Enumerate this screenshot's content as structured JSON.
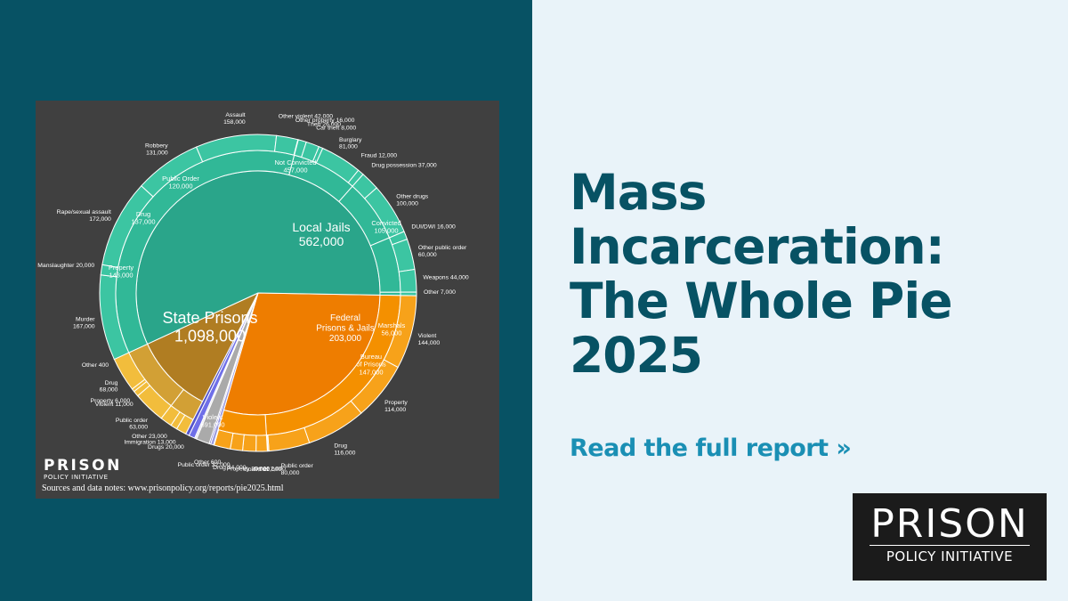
{
  "headline": {
    "lines": [
      "Mass",
      "Incarceration:",
      "The Whole Pie",
      "2025"
    ]
  },
  "cta": {
    "label": "Read the full report »"
  },
  "brand": {
    "word": "PRISON",
    "sub": "POLICY INITIATIVE"
  },
  "colors": {
    "left_panel": "#075264",
    "right_panel": "#e9f3f9",
    "headline": "#075264",
    "cta": "#1a8fb4",
    "chart_bg": "#404040",
    "state_prisons": "#2aa58a",
    "local_jails": "#ee7d00",
    "federal": "#b07d22",
    "small_groups": [
      "#9b9be0",
      "#7a7ad0",
      "#aaaaaa",
      "#e6e6ee",
      "#6f6fe8",
      "#5555cc"
    ]
  },
  "chart_data": {
    "type": "pie",
    "subtype": "sunburst",
    "card_logo": {
      "word": "PRISON",
      "sub": "POLICY INITIATIVE"
    },
    "sources": "Sources and data notes: www.prisonpolicy.org/reports/pie2025.html",
    "groups": [
      {
        "key": "local",
        "label": "Local Jails",
        "value_text": "562,000",
        "value": 562000,
        "subgroups": [
          {
            "label": "Not Convicted",
            "value_text": "457,000",
            "value": 457000,
            "leaves": [
              {
                "label": "Violent",
                "value_text": "144,000",
                "value": 144000
              },
              {
                "label": "Property",
                "value_text": "114,000",
                "value": 114000
              },
              {
                "label": "Drug",
                "value_text": "116,000",
                "value": 116000
              },
              {
                "label": "Public order",
                "value_text": "80,000",
                "value": 80000
              },
              {
                "label": "Other",
                "value_text": "2,000",
                "value": 2000
              }
            ]
          },
          {
            "label": "Convicted",
            "value_text": "105,000",
            "value": 105000,
            "leaves": [
              {
                "label": "Violent",
                "value_text": "22,000",
                "value": 22000
              },
              {
                "label": "Property",
                "value_text": "26,000",
                "value": 26000
              },
              {
                "label": "Drug",
                "value_text": "24,000",
                "value": 24000
              },
              {
                "label": "Public order",
                "value_text": "32,000",
                "value": 32000
              },
              {
                "label": "Other",
                "value_text": "600",
                "value": 600
              }
            ]
          }
        ]
      },
      {
        "key": "small",
        "label": "",
        "value": 0,
        "slices": [
          {
            "value": 6000
          },
          {
            "value": 3000
          },
          {
            "value": 26000
          },
          {
            "value": 4000
          },
          {
            "value": 12000
          },
          {
            "value": 7000
          }
        ]
      },
      {
        "key": "federal",
        "label": "Federal Prisons & Jails",
        "value_text": "203,000",
        "value": 203000,
        "subgroups": [
          {
            "label": "Marshals",
            "value_text": "56,000",
            "value": 56000,
            "leaves": [
              {
                "label": "Drugs",
                "value_text": "20,000",
                "value": 20000
              },
              {
                "label": "Immigration",
                "value_text": "13,000",
                "value": 13000
              },
              {
                "label": "Other",
                "value_text": "23,000",
                "value": 23000
              }
            ]
          },
          {
            "label": "Bureau of Prisons",
            "value_text": "147,000",
            "value": 147000,
            "leaves": [
              {
                "label": "Public order",
                "value_text": "63,000",
                "value": 63000
              },
              {
                "label": "Violent",
                "value_text": "11,000",
                "value": 11000
              },
              {
                "label": "Property",
                "value_text": "6,000",
                "value": 6000
              },
              {
                "label": "Drug",
                "value_text": "68,000",
                "value": 68000
              },
              {
                "label": "Other",
                "value_text": "400",
                "value": 400
              }
            ]
          }
        ]
      },
      {
        "key": "state",
        "label": "State Prisons",
        "value_text": "1,098,000",
        "value": 1098000,
        "subgroups": [
          {
            "label": "Violent",
            "value_text": "691,000",
            "value": 691000,
            "leaves": [
              {
                "label": "Murder",
                "value_text": "167,000",
                "value": 167000
              },
              {
                "label": "Manslaughter",
                "value_text": "20,000",
                "value": 20000
              },
              {
                "label": "Rape/sexual assault",
                "value_text": "172,000",
                "value": 172000
              },
              {
                "label": "Robbery",
                "value_text": "131,000",
                "value": 131000
              },
              {
                "label": "Assault",
                "value_text": "158,000",
                "value": 158000
              },
              {
                "label": "Other violent",
                "value_text": "42,000",
                "value": 42000
              }
            ]
          },
          {
            "label": "Property",
            "value_text": "143,000",
            "value": 143000,
            "leaves": [
              {
                "label": "Other property",
                "value_text": "16,000",
                "value": 16000
              },
              {
                "label": "Theft",
                "value_text": "26,000",
                "value": 26000
              },
              {
                "label": "Car theft",
                "value_text": "8,000",
                "value": 8000
              },
              {
                "label": "Burglary",
                "value_text": "81,000",
                "value": 81000
              },
              {
                "label": "Fraud",
                "value_text": "12,000",
                "value": 12000
              }
            ]
          },
          {
            "label": "Drug",
            "value_text": "137,000",
            "value": 137000,
            "leaves": [
              {
                "label": "Drug possession",
                "value_text": "37,000",
                "value": 37000
              },
              {
                "label": "Other drugs",
                "value_text": "100,000",
                "value": 100000
              }
            ]
          },
          {
            "label": "Public Order",
            "value_text": "120,000",
            "value": 120000,
            "leaves": [
              {
                "label": "DUI/DWI",
                "value_text": "16,000",
                "value": 16000
              },
              {
                "label": "Other public order",
                "value_text": "60,000",
                "value": 60000
              },
              {
                "label": "Weapons",
                "value_text": "44,000",
                "value": 44000
              }
            ]
          },
          {
            "label": "Other",
            "value_text": "7,000",
            "value": 7000,
            "leaves": [
              {
                "label": "Other",
                "value_text": "7,000",
                "value": 7000
              }
            ]
          }
        ]
      }
    ]
  }
}
